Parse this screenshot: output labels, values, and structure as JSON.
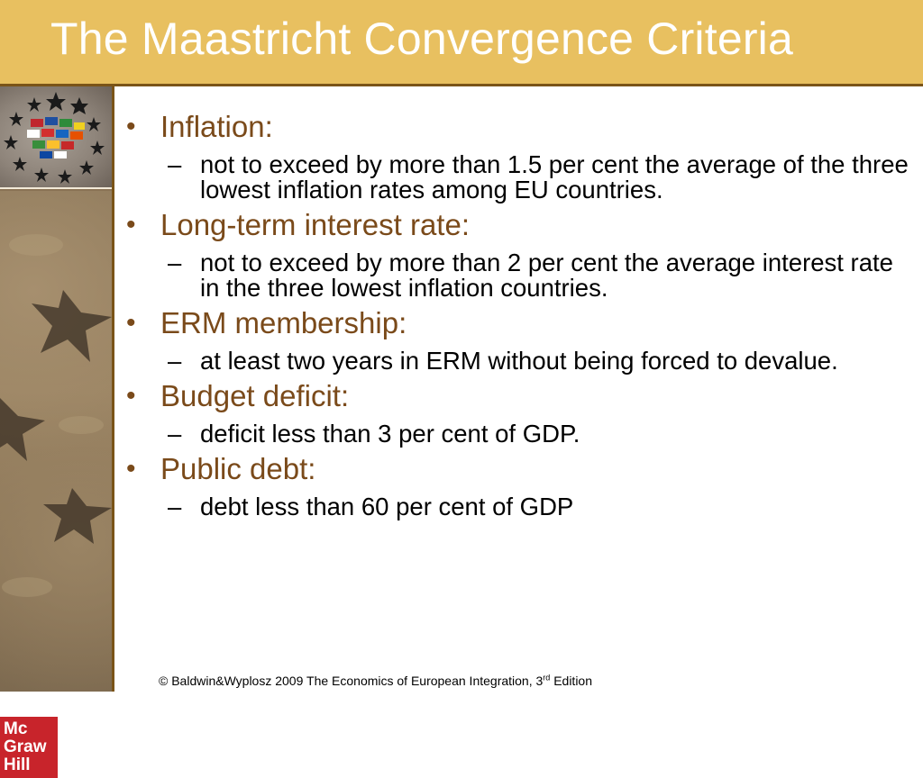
{
  "slide": {
    "title": "The Maastricht Convergence Criteria",
    "items": [
      {
        "label": "Inflation:",
        "detail": "not to exceed by more than 1.5 per cent the average of the three lowest inflation rates among EU countries."
      },
      {
        "label": "Long-term interest rate:",
        "detail": "not to exceed by more than 2 per cent the average interest rate in the three lowest inflation countries."
      },
      {
        "label": "ERM membership:",
        "detail": "at least two years in ERM without being forced to devalue."
      },
      {
        "label": "Budget deficit:",
        "detail": "deficit less than 3 per cent of GDP."
      },
      {
        "label": "Public debt:",
        "detail": "debt less than 60 per cent of GDP"
      }
    ],
    "bullet_glyph": "•",
    "dash_glyph": "–"
  },
  "logo": {
    "line1": "Mc",
    "line2": "Graw",
    "line3": "Hill"
  },
  "footer": {
    "prefix": "© Baldwin&Wyplosz 2009 The Economics of European Integration, 3",
    "sup": "rd",
    "suffix": " Edition"
  },
  "colors": {
    "title_bar": "#e8c060",
    "heading": "#7a4a1a",
    "border": "#7a5418",
    "logo": "#c8242b"
  },
  "icons": {
    "flags_circle": "eu-flags-stars-icon",
    "sand_stars": "sand-starfish-image"
  }
}
